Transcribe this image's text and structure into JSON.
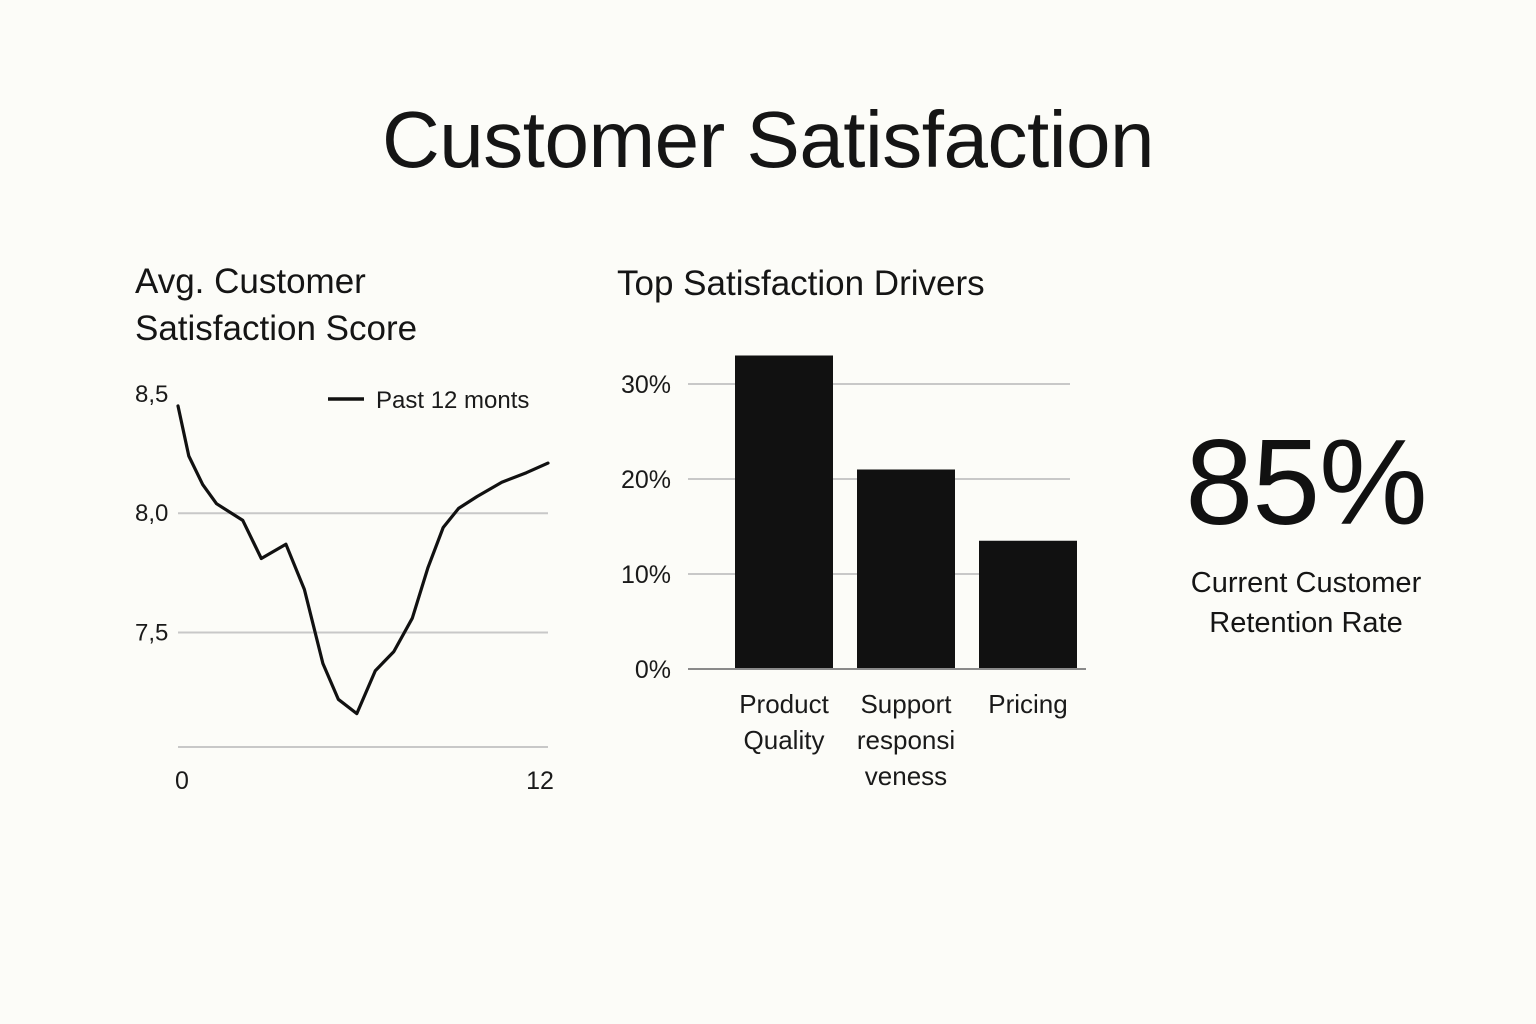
{
  "title": "Customer Satisfaction",
  "colors": {
    "background": "#fcfcf8",
    "ink": "#111111",
    "grid": "#c8c8c8"
  },
  "kpi": {
    "value": "85%",
    "label_lines": [
      "Current Customer",
      "Retention Rate"
    ]
  },
  "chart_data": [
    {
      "type": "line",
      "title_lines": [
        "Avg. Customer",
        "Satisfaction Score"
      ],
      "xlabel": "",
      "ylabel": "",
      "x_tick_labels": [
        "0",
        "12"
      ],
      "y_tick_labels": [
        "8,5",
        "8,0",
        "7,5"
      ],
      "y_ticks": [
        8.5,
        8.0,
        7.5
      ],
      "ylim": [
        7.02,
        8.55
      ],
      "xlim": [
        0,
        12
      ],
      "grid": true,
      "legend": "top-right",
      "series": [
        {
          "name": "Past 12 monts",
          "x": [
            0,
            0.35,
            0.8,
            1.25,
            2.1,
            2.7,
            3.5,
            4.1,
            4.7,
            5.2,
            5.8,
            6.4,
            7.0,
            7.6,
            8.1,
            8.6,
            9.1,
            9.7,
            10.5,
            11.3,
            12.0
          ],
          "y": [
            8.45,
            8.24,
            8.12,
            8.04,
            7.97,
            7.81,
            7.87,
            7.68,
            7.37,
            7.22,
            7.16,
            7.34,
            7.42,
            7.56,
            7.77,
            7.94,
            8.02,
            8.07,
            8.13,
            8.17,
            8.21
          ]
        }
      ]
    },
    {
      "type": "bar",
      "title": "Top Satisfaction Drivers",
      "xlabel": "",
      "ylabel": "",
      "categories": [
        [
          "Product",
          "Quality"
        ],
        [
          "Support",
          "responsi",
          "veness"
        ],
        [
          "Pricing"
        ]
      ],
      "values": [
        33,
        21,
        13.5
      ],
      "y_tick_labels": [
        "0%",
        "10%",
        "20%",
        "30%"
      ],
      "y_ticks": [
        0,
        10,
        20,
        30
      ],
      "ylim": [
        0,
        30
      ],
      "grid": true,
      "legend": "none"
    }
  ]
}
